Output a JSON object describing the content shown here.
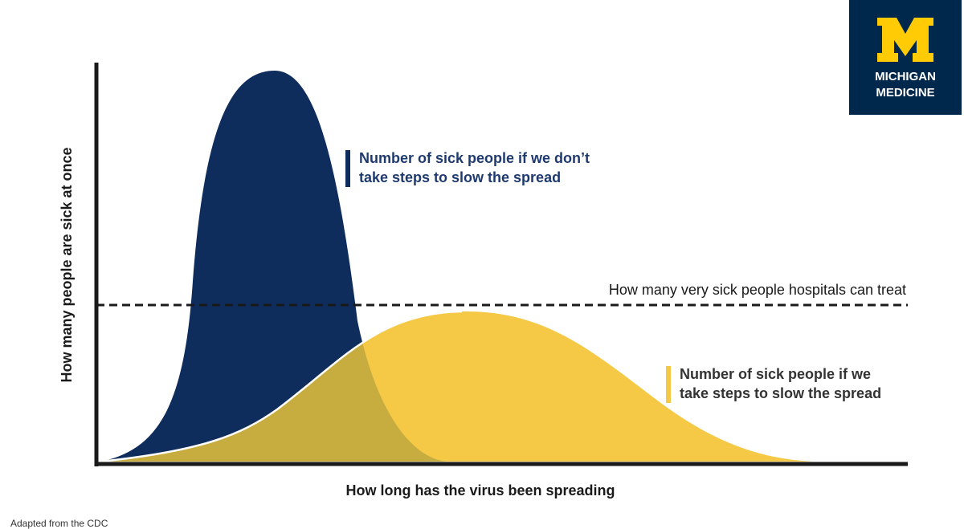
{
  "logo": {
    "line1": "MICHIGAN",
    "line2": "MEDICINE"
  },
  "y_axis_label": "How many people are sick at once",
  "x_axis_label": "How long has the virus been spreading",
  "capacity_label": "How many very sick people hospitals can treat",
  "annotations": {
    "no_steps": [
      "Number of sick people if we don’t",
      "take steps to slow the spread"
    ],
    "with_steps": [
      "Number of sick people if we",
      "take steps to slow the spread"
    ]
  },
  "footer": "Adapted from the CDC"
}
